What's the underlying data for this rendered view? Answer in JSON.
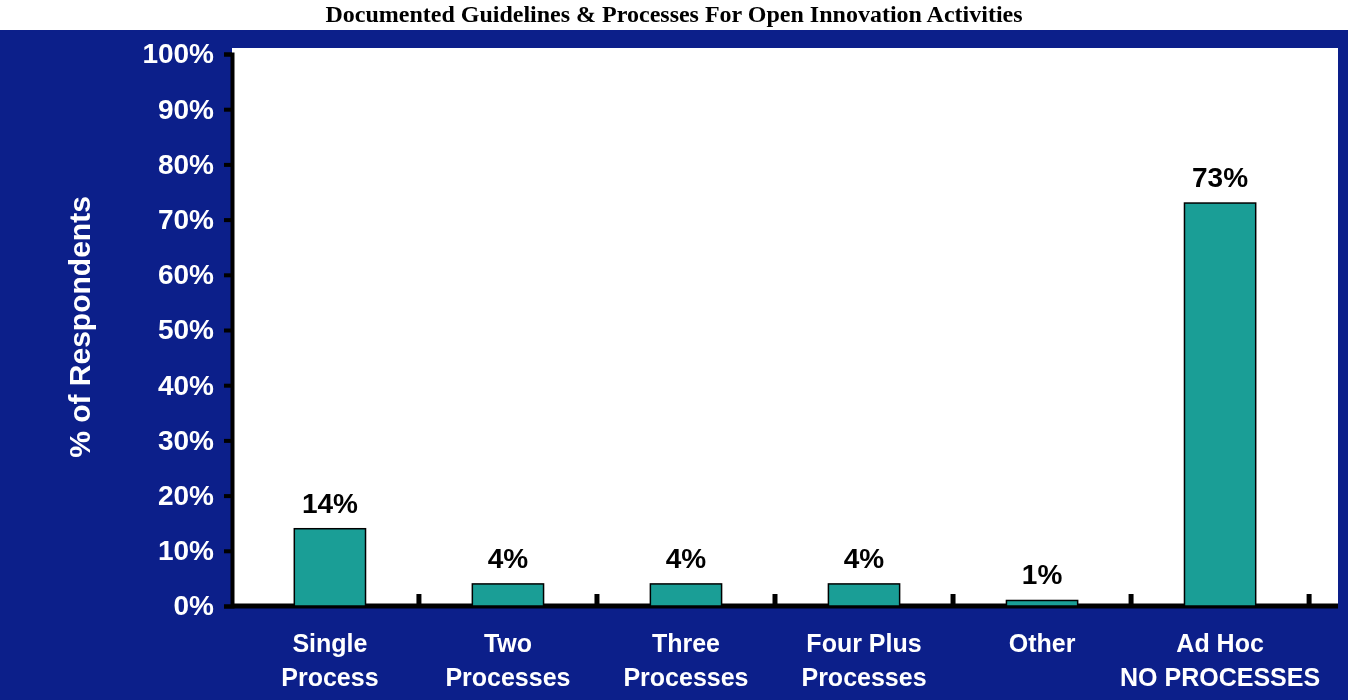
{
  "chart_data": {
    "type": "bar",
    "title": "Documented Guidelines & Processes For Open Innovation Activities",
    "ylabel": "% of Respondents",
    "categories": [
      "Single\nProcess",
      "Two\nProcesses",
      "Three\nProcesses",
      "Four Plus\nProcesses",
      "Other",
      "Ad Hoc\nNO PROCESSES"
    ],
    "values": [
      14,
      4,
      4,
      4,
      1,
      73
    ],
    "color": "#1a9e96",
    "value_labels": [
      "14%",
      "4%",
      "4%",
      "4%",
      "1%",
      "73%"
    ],
    "ylim": [
      0,
      100
    ],
    "yticks": [
      {
        "value": 0,
        "label": "0%"
      },
      {
        "value": 10,
        "label": "10%"
      },
      {
        "value": 20,
        "label": "20%"
      },
      {
        "value": 30,
        "label": "30%"
      },
      {
        "value": 40,
        "label": "40%"
      },
      {
        "value": 50,
        "label": "50%"
      },
      {
        "value": 60,
        "label": "60%"
      },
      {
        "value": 70,
        "label": "70%"
      },
      {
        "value": 80,
        "label": "80%"
      },
      {
        "value": 90,
        "label": "90%"
      },
      {
        "value": 100,
        "label": "100%"
      }
    ],
    "grid": false
  }
}
